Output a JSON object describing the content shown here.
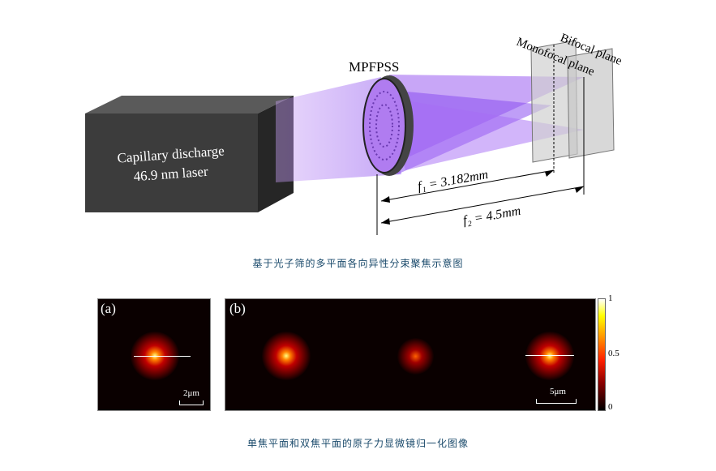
{
  "diagram": {
    "source_label": "Capillary discharge",
    "source_sublabel": "46.9 nm laser",
    "element_label": "MPFPSS",
    "plane1_label": "Monofocal plane",
    "plane2_label": "Bifocal plane",
    "f1_label": "f₁ = 3.182mm",
    "f2_label": "f₂ = 4.5mm"
  },
  "caption1": "基于光子筛的多平面各向异性分束聚焦示意图",
  "panels": {
    "a": {
      "label": "(a)",
      "scale": "2μm"
    },
    "b": {
      "label": "(b)",
      "scale": "5μm"
    },
    "colorbar": {
      "ticks": [
        "1",
        "0.5",
        "0"
      ],
      "colormap": "hot"
    }
  },
  "caption2": "单焦平面和双焦平面的原子力显微镜归一化图像",
  "colors": {
    "beam": "#9b5cf0",
    "box": "#3a3a3a",
    "caption": "#1a4a6b"
  }
}
